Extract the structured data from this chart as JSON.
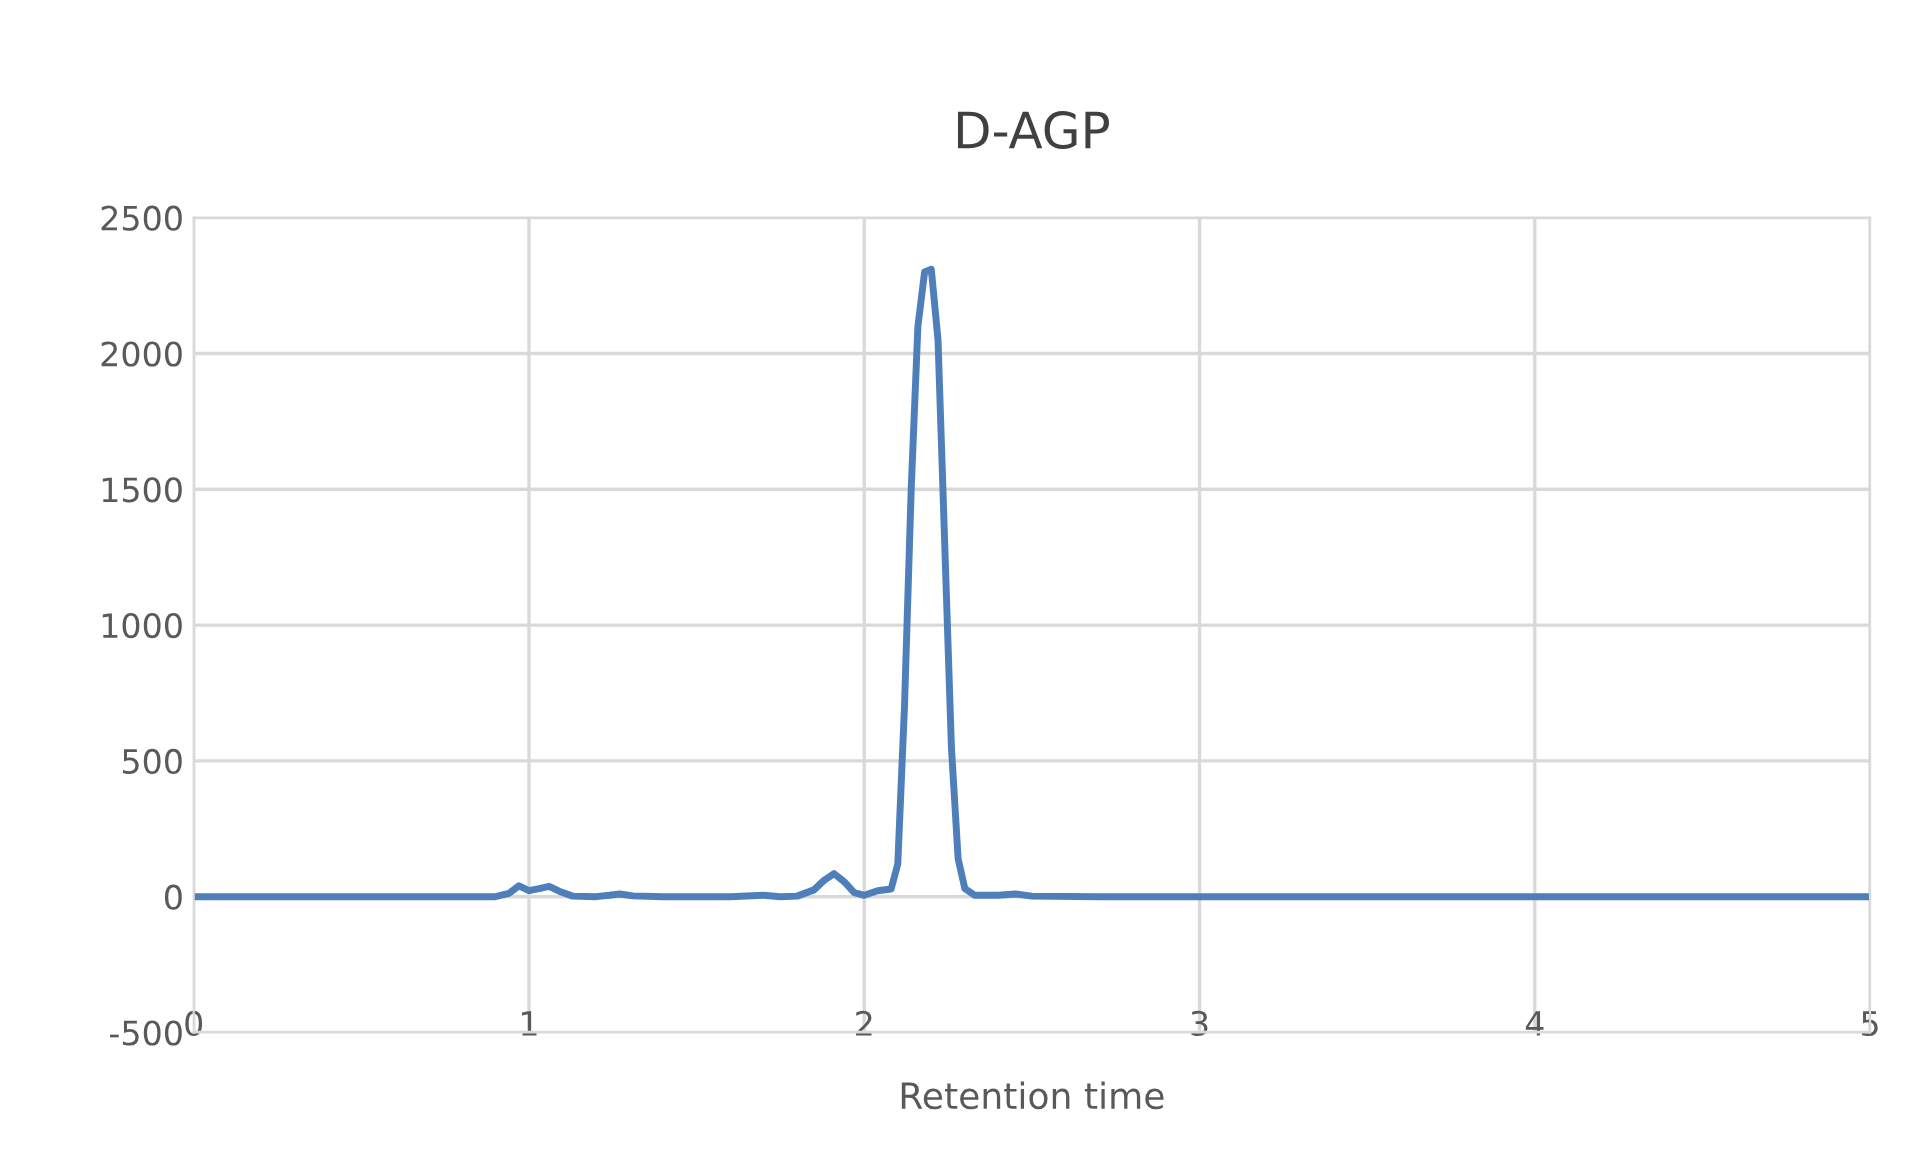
{
  "chart_data": {
    "type": "line",
    "title": "D-AGP",
    "xlabel": "Retention time",
    "x": [
      0,
      0.5,
      0.9,
      0.94,
      0.97,
      1.0,
      1.03,
      1.06,
      1.09,
      1.13,
      1.2,
      1.24,
      1.27,
      1.31,
      1.4,
      1.6,
      1.7,
      1.75,
      1.8,
      1.85,
      1.88,
      1.91,
      1.94,
      1.97,
      2.0,
      2.04,
      2.08,
      2.1,
      2.12,
      2.14,
      2.16,
      2.18,
      2.2,
      2.22,
      2.24,
      2.26,
      2.28,
      2.3,
      2.33,
      2.4,
      2.45,
      2.5,
      2.7,
      3,
      4,
      5
    ],
    "series": [
      {
        "color": "#4f7fba",
        "values": [
          0,
          0,
          0,
          12,
          40,
          22,
          30,
          38,
          20,
          2,
          0,
          5,
          10,
          3,
          0,
          0,
          5,
          0,
          2,
          25,
          60,
          85,
          55,
          15,
          5,
          22,
          28,
          120,
          700,
          1500,
          2100,
          2300,
          2310,
          2050,
          1300,
          550,
          140,
          30,
          5,
          5,
          10,
          2,
          0,
          0,
          0,
          0
        ]
      }
    ],
    "xlim": [
      0,
      5
    ],
    "xticks": [
      0,
      1,
      2,
      3,
      4,
      5
    ],
    "ylim": [
      -500,
      2500
    ],
    "yticks": [
      -500,
      0,
      500,
      1000,
      1500,
      2000,
      2500
    ],
    "grid": true
  }
}
